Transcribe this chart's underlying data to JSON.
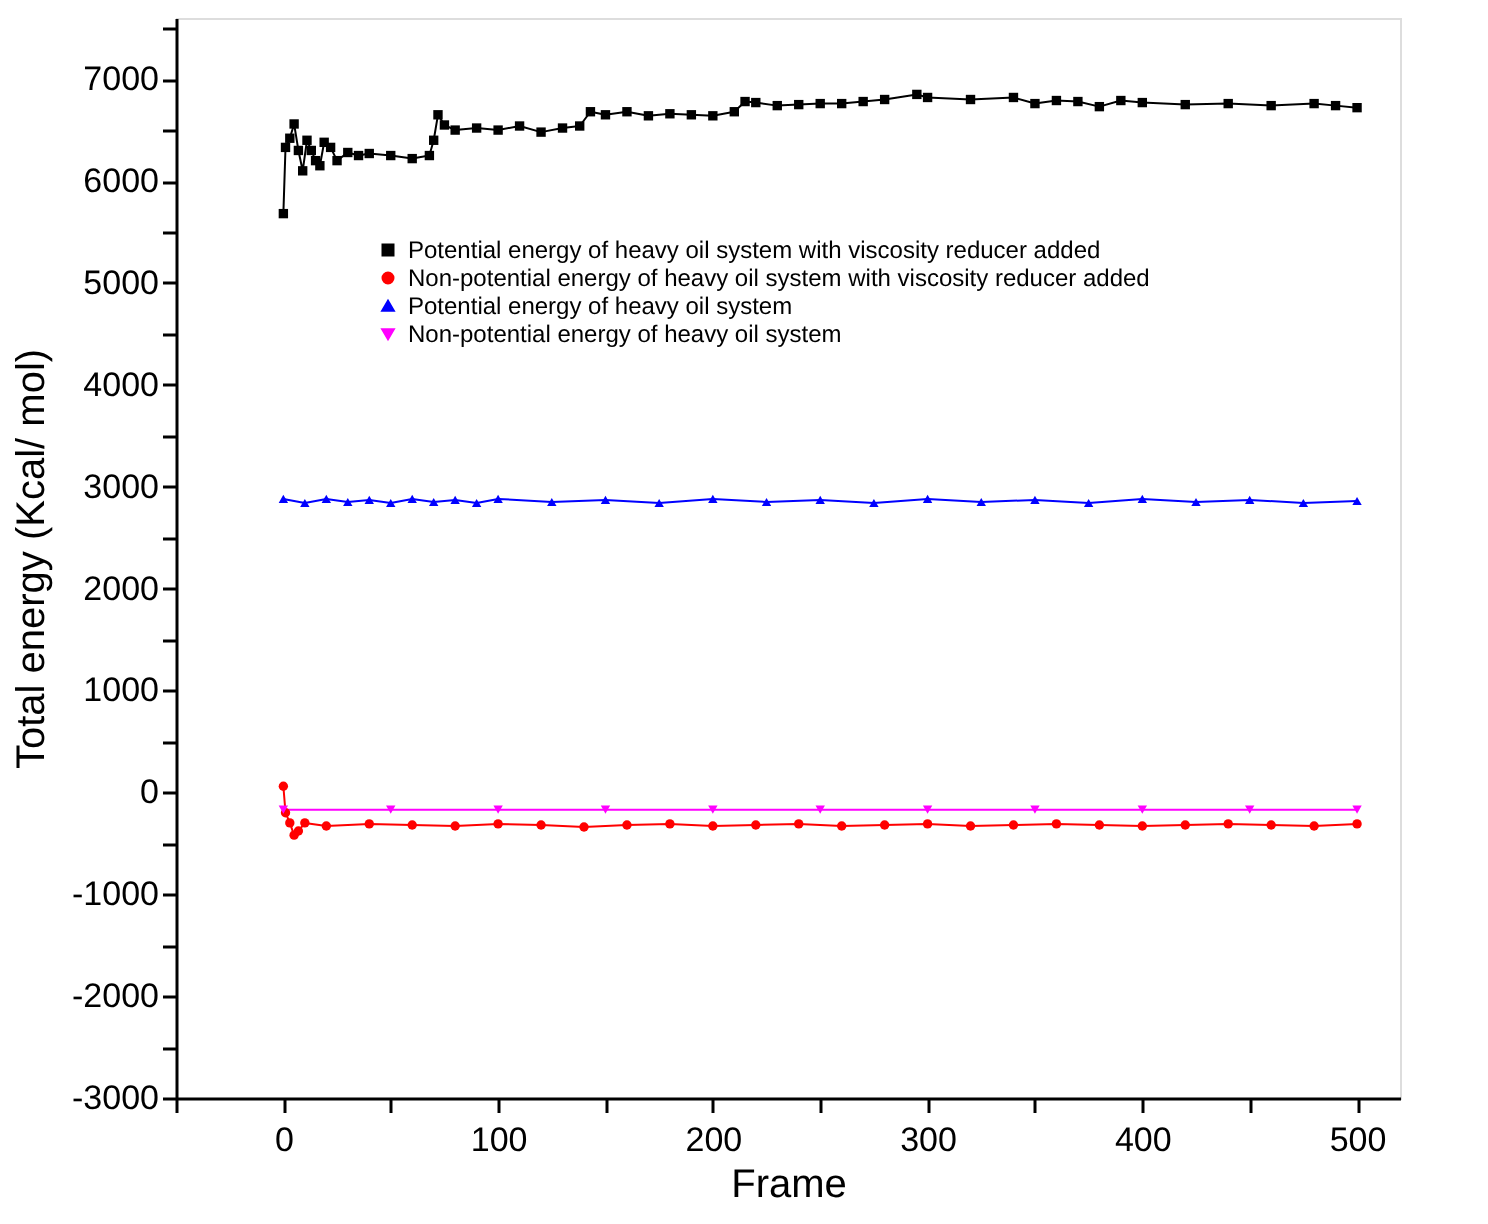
{
  "chart_data": {
    "type": "line",
    "xlabel": "Frame",
    "ylabel": "Total energy (Kcal/ mol)",
    "xlim": [
      -50,
      520
    ],
    "xticks": [
      {
        "value": -50,
        "label": null
      },
      0,
      {
        "value": 50,
        "label": null
      },
      100,
      {
        "value": 150,
        "label": null
      },
      200,
      {
        "value": 250,
        "label": null
      },
      300,
      {
        "value": 350,
        "label": null
      },
      400,
      {
        "value": 450,
        "label": null
      },
      500
    ],
    "ylim": [
      -3000,
      7600
    ],
    "yticks": [
      -3000,
      {
        "value": -2500,
        "label": null
      },
      -2000,
      {
        "value": -1500,
        "label": null
      },
      -1000,
      {
        "value": -500,
        "label": null
      },
      0,
      {
        "value": 500,
        "label": null
      },
      1000,
      {
        "value": 1500,
        "label": null
      },
      2000,
      {
        "value": 2500,
        "label": null
      },
      3000,
      {
        "value": 3500,
        "label": null
      },
      4000,
      {
        "value": 4500,
        "label": null
      },
      5000,
      {
        "value": 5500,
        "label": null
      },
      6000,
      {
        "value": 6500,
        "label": null
      },
      7000,
      {
        "value": 7500,
        "label": null
      }
    ],
    "grid": false,
    "legend": "top",
    "line_style": "solid",
    "marker": "circle",
    "series": [
      {
        "name": "Potential energy of heavy oil system with viscosity reducer added",
        "color": "#000000",
        "marker": "square",
        "x": [
          0,
          1,
          3,
          5,
          7,
          9,
          11,
          13,
          15,
          17,
          19,
          22,
          25,
          30,
          35,
          40,
          50,
          60,
          68,
          70,
          72,
          75,
          80,
          90,
          100,
          110,
          120,
          130,
          138,
          143,
          150,
          160,
          170,
          180,
          190,
          200,
          210,
          215,
          220,
          230,
          240,
          250,
          260,
          270,
          280,
          295,
          300,
          320,
          340,
          350,
          360,
          370,
          380,
          390,
          400,
          420,
          440,
          460,
          480,
          490,
          500
        ],
        "values": [
          5680,
          6330,
          6420,
          6560,
          6300,
          6100,
          6400,
          6300,
          6200,
          6150,
          6380,
          6330,
          6200,
          6280,
          6250,
          6270,
          6250,
          6220,
          6250,
          6400,
          6650,
          6550,
          6500,
          6520,
          6500,
          6540,
          6480,
          6520,
          6540,
          6680,
          6650,
          6680,
          6640,
          6660,
          6650,
          6640,
          6680,
          6780,
          6770,
          6740,
          6750,
          6760,
          6760,
          6780,
          6800,
          6850,
          6820,
          6800,
          6820,
          6760,
          6790,
          6780,
          6730,
          6790,
          6770,
          6750,
          6760,
          6740,
          6760,
          6740,
          6720
        ]
      },
      {
        "name": "Non-potential energy of heavy oil system with viscosity reducer added",
        "color": "#ff0000",
        "marker": "circle",
        "x": [
          0,
          1,
          3,
          5,
          7,
          10,
          20,
          40,
          60,
          80,
          100,
          120,
          140,
          160,
          180,
          200,
          220,
          240,
          260,
          280,
          300,
          320,
          340,
          360,
          380,
          400,
          420,
          440,
          460,
          480,
          500
        ],
        "values": [
          60,
          -200,
          -300,
          -420,
          -380,
          -300,
          -330,
          -310,
          -320,
          -330,
          -310,
          -320,
          -340,
          -320,
          -310,
          -330,
          -320,
          -310,
          -330,
          -320,
          -310,
          -330,
          -320,
          -310,
          -320,
          -330,
          -320,
          -310,
          -320,
          -330,
          -310
        ]
      },
      {
        "name": "Potential energy of heavy oil system",
        "color": "#0000ff",
        "marker": "triangle-up",
        "x": [
          0,
          10,
          20,
          30,
          40,
          50,
          60,
          70,
          80,
          90,
          100,
          125,
          150,
          175,
          200,
          225,
          250,
          275,
          300,
          325,
          350,
          375,
          400,
          425,
          450,
          475,
          500
        ],
        "values": [
          2880,
          2840,
          2880,
          2850,
          2870,
          2840,
          2880,
          2850,
          2870,
          2840,
          2880,
          2850,
          2870,
          2840,
          2880,
          2850,
          2870,
          2840,
          2880,
          2850,
          2870,
          2840,
          2880,
          2850,
          2870,
          2840,
          2860
        ]
      },
      {
        "name": "Non-potential energy of heavy oil system",
        "color": "#ff00ff",
        "marker": "triangle-down",
        "x": [
          0,
          50,
          100,
          150,
          200,
          250,
          300,
          350,
          400,
          450,
          500
        ],
        "values": [
          -170,
          -170,
          -170,
          -170,
          -170,
          -170,
          -170,
          -170,
          -170,
          -170,
          -170
        ]
      }
    ]
  }
}
